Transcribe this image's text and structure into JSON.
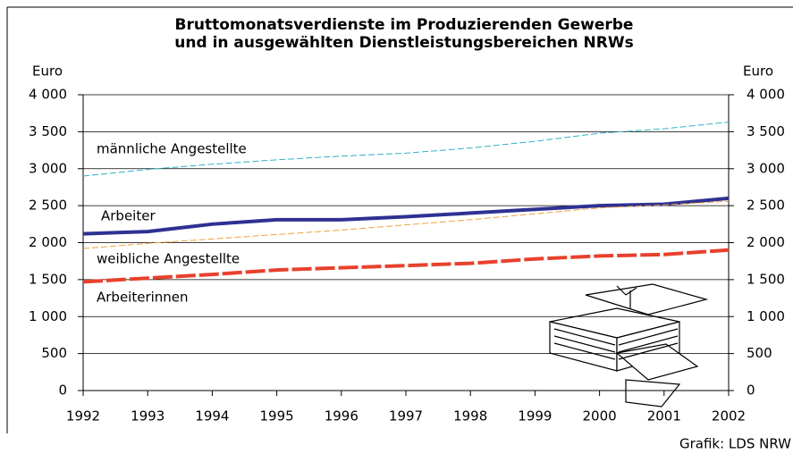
{
  "chart_data": {
    "type": "line",
    "title": [
      "Bruttomonatsverdienste im Produzierenden Gewerbe",
      "und in ausgewählten Dienstleistungsbereichen NRWs"
    ],
    "ylabel": "Euro",
    "y2label": "Euro",
    "source": "Grafik: LDS NRW",
    "x": [
      1992,
      1993,
      1994,
      1995,
      1996,
      1997,
      1998,
      1999,
      2000,
      2001,
      2002
    ],
    "xlim": [
      1992,
      2002
    ],
    "xticks": [
      1992,
      1993,
      1994,
      1995,
      1996,
      1997,
      1998,
      1999,
      2000,
      2001,
      2002
    ],
    "ylim": [
      0,
      4000
    ],
    "yticks": [
      0,
      500,
      {
        "value": 1000,
        "label": "1 000"
      },
      {
        "value": 1500,
        "label": "1 500"
      },
      {
        "value": 2000,
        "label": "2 000"
      },
      {
        "value": 2500,
        "label": "2 500"
      },
      {
        "value": 3000,
        "label": "3 000"
      },
      {
        "value": 3500,
        "label": "3 500"
      },
      {
        "value": 4000,
        "label": "4 000"
      }
    ],
    "y2lim": [
      0,
      4000
    ],
    "y2ticks": [
      0,
      500,
      {
        "value": 1000,
        "label": "1 000"
      },
      {
        "value": 1500,
        "label": "1 500"
      },
      {
        "value": 2000,
        "label": "2 000"
      },
      {
        "value": 2500,
        "label": "2 500"
      },
      {
        "value": 3000,
        "label": "3 000"
      },
      {
        "value": 3500,
        "label": "3 500"
      },
      {
        "value": 4000,
        "label": "4 000"
      }
    ],
    "grid": true,
    "series": [
      {
        "name": "männliche Angestellte",
        "color": "#2fb0c8",
        "style": "dashed",
        "width": 1,
        "values": [
          2900,
          2990,
          3060,
          3120,
          3170,
          3210,
          3280,
          3370,
          3480,
          3540,
          3630
        ]
      },
      {
        "name": "Arbeiter",
        "color": "#2e3192",
        "style": "solid",
        "width": 4,
        "values": [
          2120,
          2150,
          2250,
          2310,
          2310,
          2350,
          2400,
          2450,
          2500,
          2520,
          2600
        ]
      },
      {
        "name": "weibliche Angestellte",
        "color": "#f0a040",
        "style": "dashed",
        "width": 1,
        "values": [
          1920,
          1990,
          2050,
          2110,
          2170,
          2240,
          2310,
          2390,
          2470,
          2510,
          2560
        ]
      },
      {
        "name": "Arbeiterinnen",
        "color": "#e8412c",
        "style": "dashed",
        "width": 4,
        "values": [
          1470,
          1520,
          1570,
          1630,
          1660,
          1690,
          1720,
          1780,
          1820,
          1840,
          1900
        ]
      }
    ]
  }
}
